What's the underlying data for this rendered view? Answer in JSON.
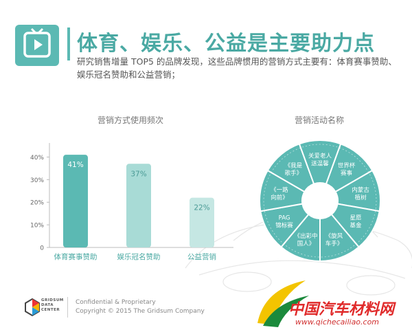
{
  "header": {
    "title": "体育、娱乐、公益是主要助力点",
    "subtitle": "研究销售增量 TOP5 的品牌发现，这些品牌惯用的营销方式主要有：体育赛事赞助、娱乐冠名赞助和公益营销；"
  },
  "chart_data": [
    {
      "type": "bar",
      "title": "营销方式使用频次",
      "categories": [
        "体育赛事赞助",
        "娱乐冠名赞助",
        "公益营销"
      ],
      "values": [
        41,
        37,
        22
      ],
      "value_labels": [
        "41%",
        "37%",
        "22%"
      ],
      "y_ticks": [
        "0",
        "10%",
        "20%",
        "30%",
        "40%"
      ],
      "ylim": [
        0,
        45
      ],
      "grid": false,
      "colors": [
        "#5bb9b3",
        "#a8dbd6",
        "#c5e7e3"
      ]
    },
    {
      "type": "pie",
      "title": "营销活动名称",
      "labels": [
        "世界杯赛事",
        "内蒙古植树",
        "星愿基金",
        "《旋风车手》",
        "《出彩中国人》",
        "PAG锦标赛",
        "《一路向前》",
        "《我是歌手》",
        "关爱老人送温馨"
      ],
      "values": [
        1,
        1,
        1,
        1,
        1,
        1,
        1,
        1,
        1
      ],
      "colors": [
        "#5bb9b3"
      ]
    }
  ],
  "footer": {
    "brand_line1": "GRIDSUM",
    "brand_line2": "DATA",
    "brand_line3": "CENTER",
    "line1": "Confidential & Proprietary",
    "line2": "Copyright © 2015 The Gridsum Company"
  },
  "watermark": {
    "text": "中国汽车材料网",
    "url": "www.qichecailiao.com"
  },
  "colors": {
    "accent": "#5bb9b3",
    "title": "#4aa9a3",
    "watermark": "#e02a2a"
  }
}
